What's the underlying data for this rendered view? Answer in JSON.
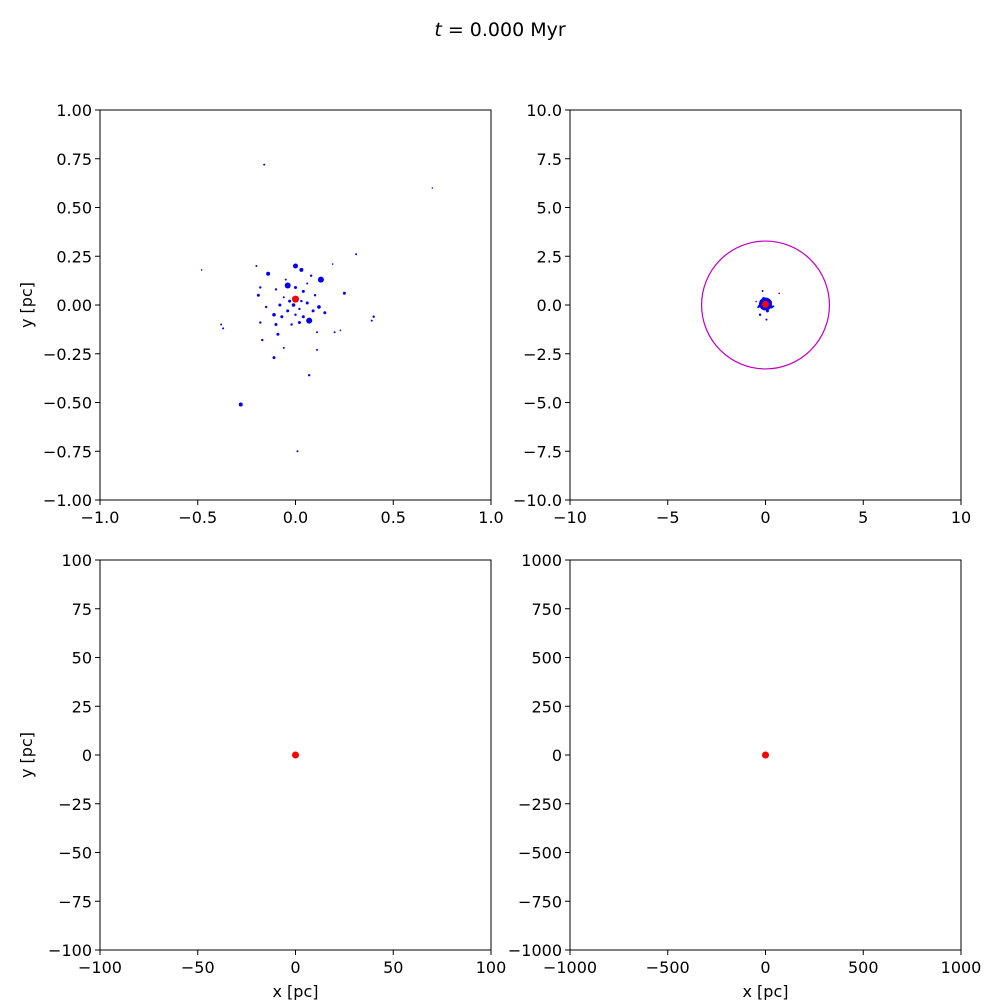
{
  "figure": {
    "title_var": "t",
    "title_rest": " = 0.000 Myr"
  },
  "colors": {
    "cluster_stars": "#0000ee",
    "black_hole": "#ff0000",
    "radius_circle": "#c000c0",
    "axes": "#000000"
  },
  "chart_data": [
    {
      "type": "scatter",
      "panel": "top-left",
      "xlim": [
        -1.0,
        1.0
      ],
      "ylim": [
        -1.0,
        1.0
      ],
      "xticks": [
        "−1.0",
        "−0.5",
        "0.0",
        "0.5",
        "1.0"
      ],
      "xtick_values": [
        -1.0,
        -0.5,
        0.0,
        0.5,
        1.0
      ],
      "yticks": [
        "−1.00",
        "−0.75",
        "−0.50",
        "−0.25",
        "0.00",
        "0.25",
        "0.50",
        "0.75",
        "1.00"
      ],
      "ytick_values": [
        -1.0,
        -0.75,
        -0.5,
        -0.25,
        0.0,
        0.25,
        0.5,
        0.75,
        1.0
      ],
      "xlabel": "",
      "ylabel": "y [pc]",
      "series": [
        {
          "role": "cluster_stars",
          "points": [
            [
              -0.16,
              0.72,
              1.0
            ],
            [
              0.7,
              0.6,
              0.8
            ],
            [
              -0.48,
              0.18,
              0.8
            ],
            [
              0.31,
              0.26,
              1.0
            ],
            [
              0.19,
              0.21,
              0.8
            ],
            [
              -0.14,
              0.16,
              2.0
            ],
            [
              -0.2,
              0.2,
              1.0
            ],
            [
              0.0,
              0.2,
              2.5
            ],
            [
              0.03,
              0.18,
              2.0
            ],
            [
              0.13,
              0.13,
              3.0
            ],
            [
              0.08,
              0.15,
              1.2
            ],
            [
              -0.04,
              0.1,
              3.0
            ],
            [
              0.0,
              0.09,
              1.5
            ],
            [
              -0.18,
              0.09,
              1.2
            ],
            [
              -0.1,
              0.08,
              1.2
            ],
            [
              0.04,
              0.07,
              1.5
            ],
            [
              0.25,
              0.06,
              1.5
            ],
            [
              -0.19,
              0.05,
              1.5
            ],
            [
              0.1,
              0.05,
              1.2
            ],
            [
              -0.06,
              0.04,
              1.0
            ],
            [
              -0.03,
              0.02,
              1.5
            ],
            [
              0.03,
              0.02,
              1.2
            ],
            [
              0.06,
              0.01,
              1.5
            ],
            [
              -0.08,
              0.0,
              1.5
            ],
            [
              -0.01,
              0.0,
              1.8
            ],
            [
              0.12,
              -0.01,
              1.8
            ],
            [
              -0.15,
              -0.01,
              1.2
            ],
            [
              0.02,
              -0.02,
              1.2
            ],
            [
              -0.04,
              -0.03,
              1.5
            ],
            [
              0.09,
              -0.03,
              1.5
            ],
            [
              0.15,
              -0.04,
              1.5
            ],
            [
              -0.11,
              -0.05,
              1.8
            ],
            [
              0.0,
              -0.05,
              1.2
            ],
            [
              0.04,
              -0.06,
              1.5
            ],
            [
              -0.07,
              -0.06,
              1.5
            ],
            [
              0.07,
              -0.08,
              3.0
            ],
            [
              0.02,
              -0.09,
              1.5
            ],
            [
              -0.02,
              -0.1,
              1.2
            ],
            [
              -0.1,
              -0.1,
              1.5
            ],
            [
              -0.18,
              -0.09,
              1.2
            ],
            [
              0.2,
              -0.14,
              1.0
            ],
            [
              0.11,
              -0.14,
              1.0
            ],
            [
              -0.09,
              -0.15,
              1.5
            ],
            [
              -0.17,
              -0.18,
              1.2
            ],
            [
              0.11,
              -0.23,
              1.0
            ],
            [
              -0.06,
              -0.22,
              1.0
            ],
            [
              -0.11,
              -0.27,
              1.5
            ],
            [
              0.07,
              -0.36,
              1.2
            ],
            [
              0.4,
              -0.06,
              1.2
            ],
            [
              0.39,
              -0.08,
              1.0
            ],
            [
              -0.38,
              -0.1,
              1.0
            ],
            [
              -0.37,
              -0.12,
              1.0
            ],
            [
              -0.28,
              -0.51,
              2.0
            ],
            [
              0.01,
              -0.75,
              1.0
            ],
            [
              0.23,
              -0.13,
              0.8
            ],
            [
              -0.05,
              0.13,
              1.0
            ],
            [
              0.06,
              0.11,
              1.0
            ]
          ]
        },
        {
          "role": "black_hole",
          "points": [
            [
              0.0,
              0.03,
              3.5
            ]
          ]
        }
      ]
    },
    {
      "type": "scatter",
      "panel": "top-right",
      "xlim": [
        -10,
        10
      ],
      "ylim": [
        -10,
        10
      ],
      "xticks": [
        "−10",
        "−5",
        "0",
        "5",
        "10"
      ],
      "xtick_values": [
        -10,
        -5,
        0,
        5,
        10
      ],
      "yticks": [
        "−10.0",
        "−7.5",
        "−5.0",
        "−2.5",
        "0.0",
        "2.5",
        "5.0",
        "7.5",
        "10.0"
      ],
      "ytick_values": [
        -10.0,
        -7.5,
        -5.0,
        -2.5,
        0.0,
        2.5,
        5.0,
        7.5,
        10.0
      ],
      "xlabel": "",
      "ylabel": "",
      "circle": {
        "cx": 0.0,
        "cy": 0.0,
        "r": 3.27
      },
      "series": [
        {
          "role": "cluster_stars",
          "points": [
            [
              0.0,
              0.05,
              6.5
            ],
            [
              -0.2,
              0.2,
              1.5
            ],
            [
              0.25,
              0.15,
              1.5
            ],
            [
              0.3,
              -0.1,
              1.5
            ],
            [
              -0.3,
              -0.05,
              1.5
            ],
            [
              0.1,
              -0.3,
              1.5
            ],
            [
              -0.1,
              0.35,
              1.2
            ],
            [
              -0.15,
              0.72,
              1.0
            ],
            [
              0.7,
              0.6,
              0.8
            ],
            [
              -0.48,
              0.18,
              0.8
            ],
            [
              -0.28,
              -0.5,
              1.2
            ],
            [
              0.05,
              -0.75,
              1.0
            ],
            [
              0.4,
              -0.07,
              1.0
            ],
            [
              -0.37,
              -0.11,
              1.0
            ],
            [
              0.15,
              0.2,
              1.2
            ],
            [
              -0.05,
              -0.18,
              1.2
            ]
          ]
        },
        {
          "role": "black_hole",
          "points": [
            [
              0.0,
              0.03,
              3.5
            ]
          ]
        }
      ]
    },
    {
      "type": "scatter",
      "panel": "bottom-left",
      "xlim": [
        -100,
        100
      ],
      "ylim": [
        -100,
        100
      ],
      "xticks": [
        "−100",
        "−50",
        "0",
        "50",
        "100"
      ],
      "xtick_values": [
        -100,
        -50,
        0,
        50,
        100
      ],
      "yticks": [
        "−100",
        "−75",
        "−50",
        "−25",
        "0",
        "25",
        "50",
        "75",
        "100"
      ],
      "ytick_values": [
        -100,
        -75,
        -50,
        -25,
        0,
        25,
        50,
        75,
        100
      ],
      "xlabel": "x [pc]",
      "ylabel": "y [pc]",
      "series": [
        {
          "role": "black_hole",
          "points": [
            [
              0.0,
              0.0,
              3.5
            ]
          ]
        }
      ]
    },
    {
      "type": "scatter",
      "panel": "bottom-right",
      "xlim": [
        -1000,
        1000
      ],
      "ylim": [
        -1000,
        1000
      ],
      "xticks": [
        "−1000",
        "−500",
        "0",
        "500",
        "1000"
      ],
      "xtick_values": [
        -1000,
        -500,
        0,
        500,
        1000
      ],
      "yticks": [
        "−1000",
        "−750",
        "−500",
        "−250",
        "0",
        "250",
        "500",
        "750",
        "1000"
      ],
      "ytick_values": [
        -1000,
        -750,
        -500,
        -250,
        0,
        250,
        500,
        750,
        1000
      ],
      "xlabel": "x [pc]",
      "ylabel": "",
      "series": [
        {
          "role": "black_hole",
          "points": [
            [
              0.0,
              0.0,
              3.5
            ]
          ]
        }
      ]
    }
  ]
}
